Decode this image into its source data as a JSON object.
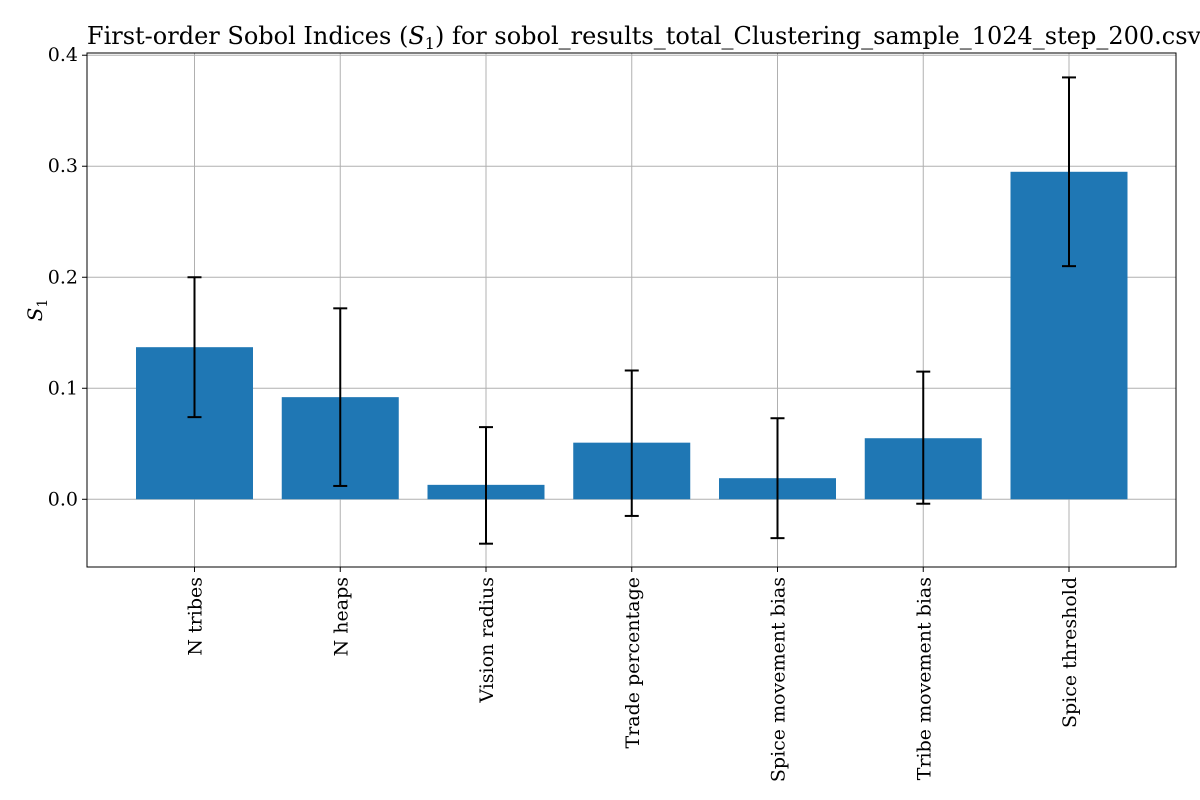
{
  "chart_data": {
    "type": "bar",
    "title": "First-order Sobol Indices (S1) for sobol_results_total_Clustering_sample_1024_step_200.csv",
    "xlabel": "",
    "ylabel": "S1",
    "categories": [
      "N tribes",
      "N heaps",
      "Vision radius",
      "Trade percentage",
      "Spice movement bias",
      "Tribe movement bias",
      "Spice threshold"
    ],
    "values": [
      0.137,
      0.092,
      0.013,
      0.051,
      0.019,
      0.055,
      0.295
    ],
    "error_low": [
      0.074,
      0.012,
      -0.04,
      -0.015,
      -0.035,
      -0.004,
      0.21
    ],
    "error_high": [
      0.2,
      0.172,
      0.065,
      0.116,
      0.073,
      0.115,
      0.38
    ],
    "ylim": [
      -0.061,
      0.402
    ],
    "yticks": [
      "0.0",
      "0.1",
      "0.2",
      "0.3",
      "0.4"
    ],
    "ytick_values": [
      0.0,
      0.1,
      0.2,
      0.3,
      0.4
    ],
    "grid": true,
    "bar_color": "#1f77b4",
    "error_color": "#000000"
  }
}
